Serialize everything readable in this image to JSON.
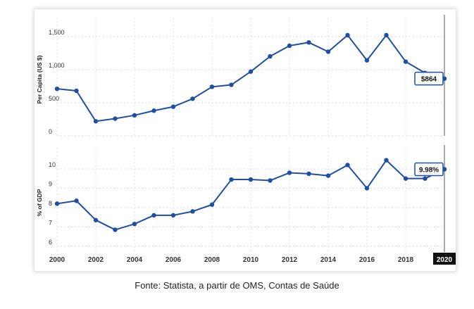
{
  "chart_data": [
    {
      "type": "line",
      "ylabel": "Per Capita (US $)",
      "ylim": [
        0,
        1700
      ],
      "yticks": [
        0,
        500,
        1000,
        1500
      ],
      "ytick_labels": [
        "0",
        "500",
        "1,000",
        "1,500"
      ],
      "grid": true,
      "x": [
        2000,
        2001,
        2002,
        2003,
        2004,
        2005,
        2006,
        2007,
        2008,
        2009,
        2010,
        2011,
        2012,
        2013,
        2014,
        2015,
        2016,
        2017,
        2018,
        2019,
        2020
      ],
      "series": [
        {
          "values": [
            710,
            680,
            220,
            260,
            310,
            380,
            440,
            560,
            740,
            770,
            970,
            1200,
            1360,
            1410,
            1270,
            1520,
            1140,
            1520,
            1120,
            950,
            864
          ]
        }
      ],
      "tooltip": "$864",
      "color": "#1f4fa3"
    },
    {
      "type": "line",
      "ylabel": "% of GDP",
      "ylim": [
        5.7,
        10.8
      ],
      "yticks": [
        6,
        7,
        8,
        9,
        10
      ],
      "ytick_labels": [
        "6",
        "7",
        "8",
        "9",
        "10"
      ],
      "grid": true,
      "x": [
        2000,
        2001,
        2002,
        2003,
        2004,
        2005,
        2006,
        2007,
        2008,
        2009,
        2010,
        2011,
        2012,
        2013,
        2014,
        2015,
        2016,
        2017,
        2018,
        2019,
        2020
      ],
      "series": [
        {
          "values": [
            8.2,
            8.35,
            7.35,
            6.85,
            7.15,
            7.6,
            7.6,
            7.8,
            8.15,
            9.45,
            9.45,
            9.4,
            9.8,
            9.75,
            9.65,
            10.2,
            9.0,
            10.45,
            9.5,
            9.5,
            9.98
          ]
        }
      ],
      "tooltip": "9.98%",
      "color": "#1f4fa3"
    }
  ],
  "x_axis": {
    "tick_labels": [
      "2000",
      "2002",
      "2004",
      "2006",
      "2008",
      "2010",
      "2012",
      "2014",
      "2016",
      "2018",
      "2020"
    ],
    "highlighted": "2020"
  },
  "source": "Fonte: Statista, a partir de OMS, Contas de Saúde"
}
